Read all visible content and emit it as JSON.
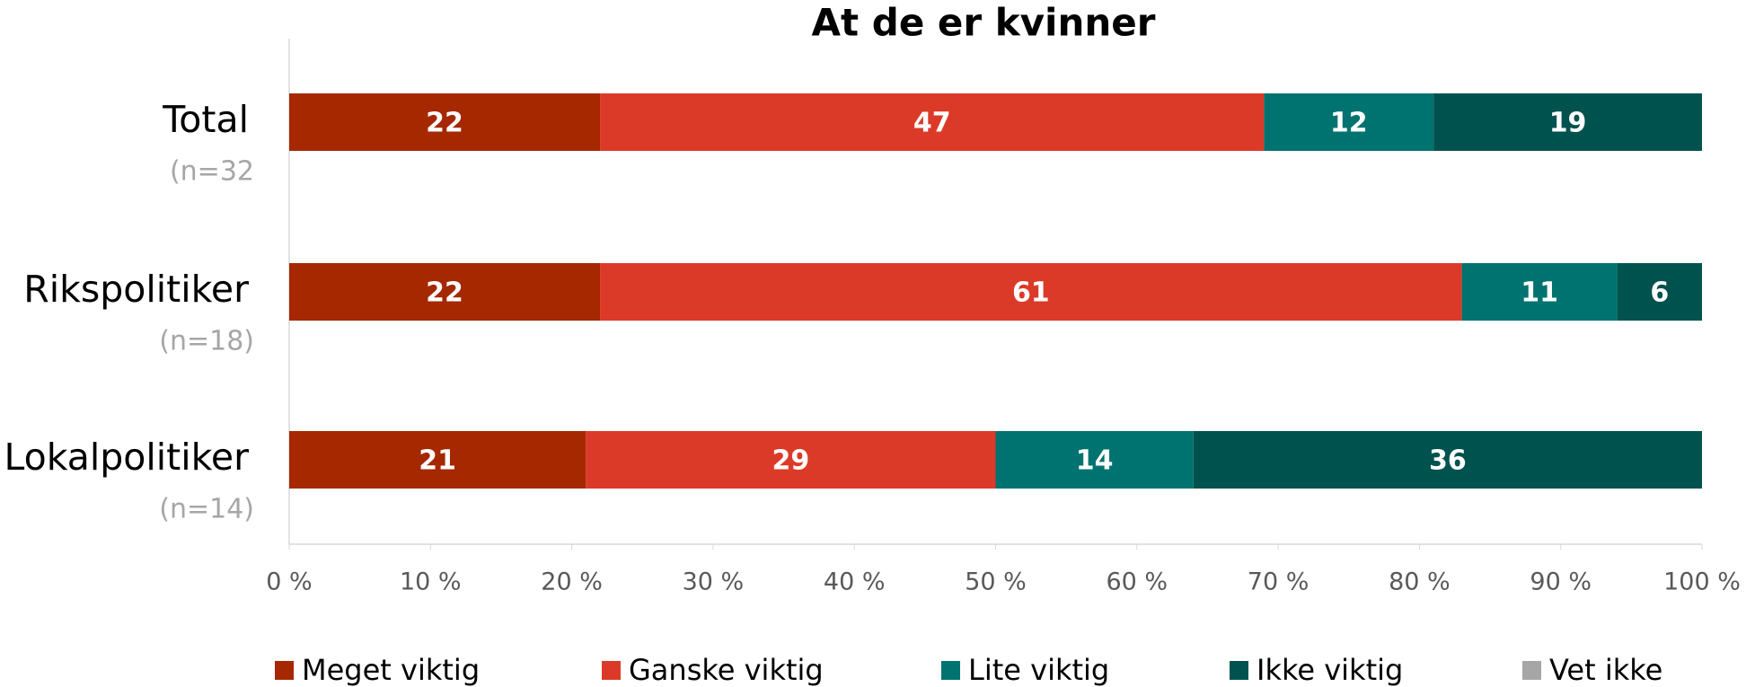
{
  "chart_data": {
    "type": "stacked_barh",
    "title": "At de er kvinner",
    "categories": [
      "Total",
      "Rikspolitiker",
      "Lokalpolitiker"
    ],
    "category_notes": [
      "(n=32",
      "(n=18)",
      "(n=14)"
    ],
    "series": [
      {
        "name": "Meget viktig",
        "color": "#a52800",
        "values": [
          22,
          22,
          21
        ]
      },
      {
        "name": "Ganske viktig",
        "color": "#dc3a28",
        "values": [
          47,
          61,
          29
        ]
      },
      {
        "name": "Lite viktig",
        "color": "#007370",
        "values": [
          12,
          11,
          14
        ]
      },
      {
        "name": "Ikke viktig",
        "color": "#00524f",
        "values": [
          19,
          6,
          36
        ]
      },
      {
        "name": "Vet ikke",
        "color": "#a6a6a6",
        "values": [
          0,
          0,
          0
        ]
      }
    ],
    "xlim": [
      0,
      100
    ],
    "xticks": [
      {
        "value": 0,
        "label": "0 %"
      },
      {
        "value": 10,
        "label": "10 %"
      },
      {
        "value": 20,
        "label": "20 %"
      },
      {
        "value": 30,
        "label": "30 %"
      },
      {
        "value": 40,
        "label": "40 %"
      },
      {
        "value": 50,
        "label": "50 %"
      },
      {
        "value": 60,
        "label": "60 %"
      },
      {
        "value": 70,
        "label": "70 %"
      },
      {
        "value": 80,
        "label": "80 %"
      },
      {
        "value": 90,
        "label": "90 %"
      },
      {
        "value": 100,
        "label": "100 %"
      }
    ],
    "legend": "bottom"
  }
}
